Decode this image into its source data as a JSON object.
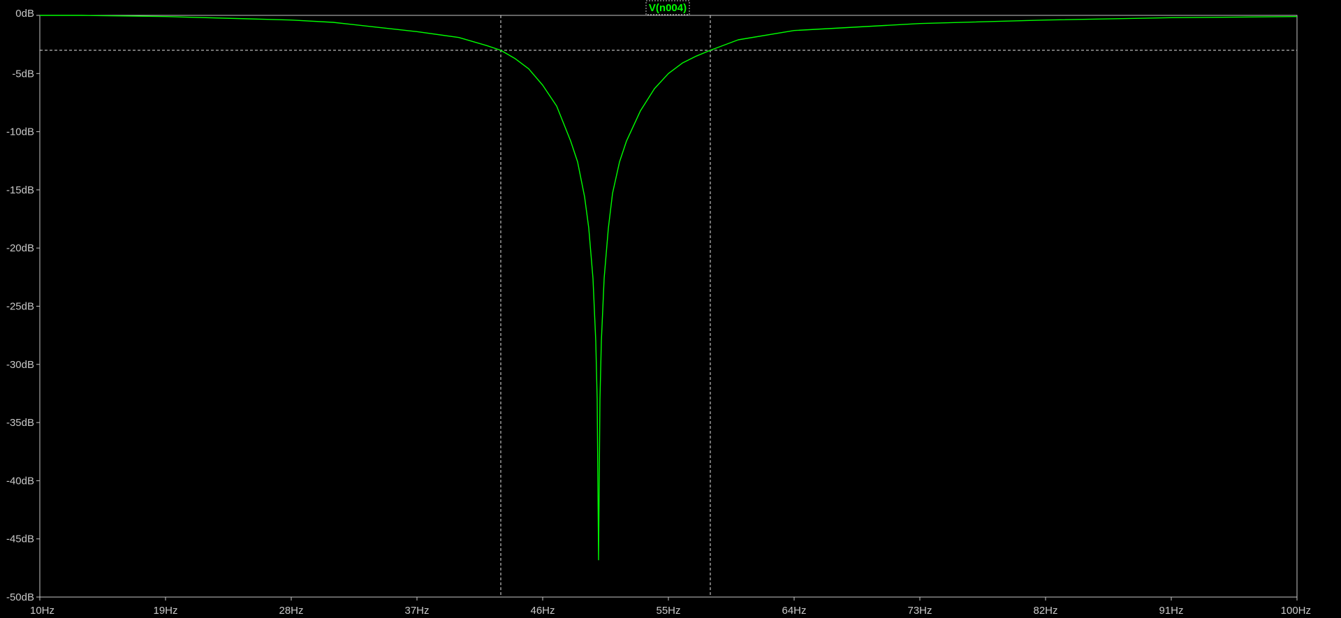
{
  "chart_data": {
    "type": "line",
    "trace_label": "V(n004)",
    "x_unit": "Hz",
    "y_unit": "dB",
    "xlim": [
      10,
      100
    ],
    "ylim": [
      -50,
      0
    ],
    "x_ticks": [
      "10Hz",
      "19Hz",
      "28Hz",
      "37Hz",
      "46Hz",
      "55Hz",
      "64Hz",
      "73Hz",
      "82Hz",
      "91Hz",
      "100Hz"
    ],
    "y_ticks": [
      "0dB",
      "-5dB",
      "-10dB",
      "-15dB",
      "-20dB",
      "-25dB",
      "-30dB",
      "-35dB",
      "-40dB",
      "-45dB",
      "-50dB"
    ],
    "cursors": {
      "x": [
        43,
        58
      ],
      "y": -3
    },
    "series": [
      {
        "name": "V(n004)",
        "color": "#00ff00",
        "x": [
          10,
          13,
          19,
          25,
          28,
          31,
          34,
          37,
          40,
          42,
          43,
          44,
          45,
          46,
          47,
          48,
          48.5,
          49,
          49.3,
          49.6,
          49.8,
          49.9,
          50,
          50.1,
          50.2,
          50.4,
          50.7,
          51,
          51.5,
          52,
          53,
          54,
          55,
          56,
          57,
          58,
          60,
          64,
          73,
          82,
          91,
          100
        ],
        "y": [
          0,
          0,
          -0.1,
          -0.3,
          -0.4,
          -0.6,
          -1.0,
          -1.4,
          -1.9,
          -2.6,
          -3.0,
          -3.7,
          -4.6,
          -6.0,
          -7.8,
          -10.8,
          -12.6,
          -15.6,
          -18.3,
          -22.6,
          -28.0,
          -33.0,
          -46.8,
          -33.0,
          -28.0,
          -22.6,
          -18.3,
          -15.3,
          -12.6,
          -10.8,
          -8.2,
          -6.3,
          -5.0,
          -4.1,
          -3.5,
          -3.0,
          -2.1,
          -1.3,
          -0.7,
          -0.4,
          -0.2,
          -0.1
        ]
      }
    ]
  }
}
